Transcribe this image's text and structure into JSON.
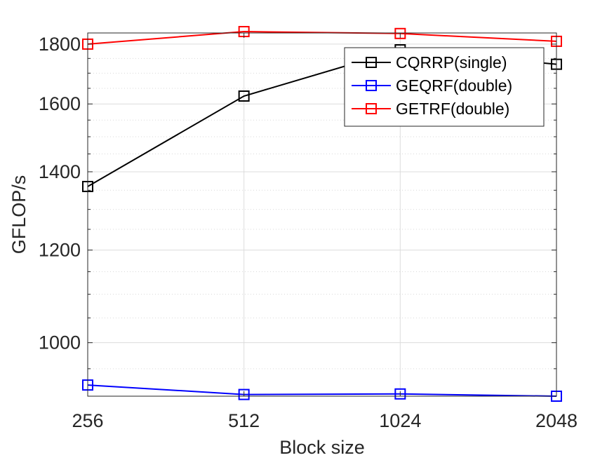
{
  "chart_data": {
    "type": "line",
    "xlabel": "Block size",
    "ylabel": "GFLOP/s",
    "x_scale": "log2",
    "y_scale": "log",
    "x": [
      256,
      512,
      1024,
      2048
    ],
    "x_ticks": [
      "256",
      "512",
      "1024",
      "2048"
    ],
    "xlim": [
      256,
      2048
    ],
    "ylim": [
      900,
      1840
    ],
    "y_ticks": [
      1000,
      1200,
      1400,
      1600,
      1800
    ],
    "y_tick_labels": [
      "1000",
      "1200",
      "1400",
      "1600",
      "1800"
    ],
    "grid": true,
    "minor_grid": true,
    "legend_position": "top-right",
    "marker": "square",
    "series": [
      {
        "name": "CQRRP(single)",
        "color": "#000000",
        "values": [
          1360,
          1625,
          1780,
          1730
        ]
      },
      {
        "name": "GEQRF(double)",
        "color": "#0000ff",
        "values": [
          920,
          903,
          904,
          900
        ]
      },
      {
        "name": "GETRF(double)",
        "color": "#ff0000",
        "values": [
          1800,
          1845,
          1838,
          1810
        ]
      }
    ]
  }
}
